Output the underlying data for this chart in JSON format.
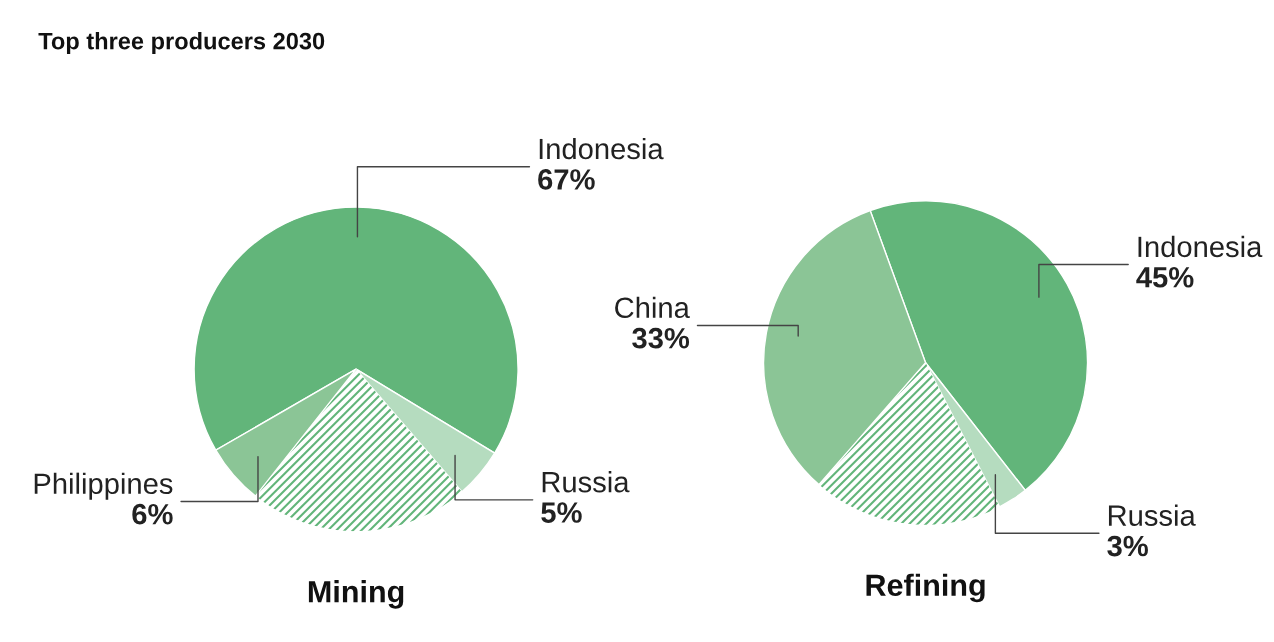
{
  "chart_data": [
    {
      "type": "pie",
      "title": "Mining",
      "annotations": [
        "Top three producers 2030"
      ],
      "categories": [
        "Indonesia",
        "Russia",
        null,
        "Philippines"
      ],
      "values": [
        67,
        5,
        22,
        6
      ],
      "value_labels": [
        "67%",
        "5%",
        null,
        "6%"
      ],
      "colors": [
        "#62b57a",
        "#b5dcbf",
        "#ffffff",
        "#8bc596"
      ]
    },
    {
      "type": "pie",
      "title": "Refining",
      "categories": [
        "Indonesia",
        "Russia",
        null,
        "China"
      ],
      "values": [
        45,
        3,
        19,
        33
      ],
      "value_labels": [
        "45%",
        "3%",
        null,
        "33%"
      ],
      "colors": [
        "#62b57a",
        "#b5dcbf",
        "#ffffff",
        "#8bc596"
      ]
    }
  ]
}
